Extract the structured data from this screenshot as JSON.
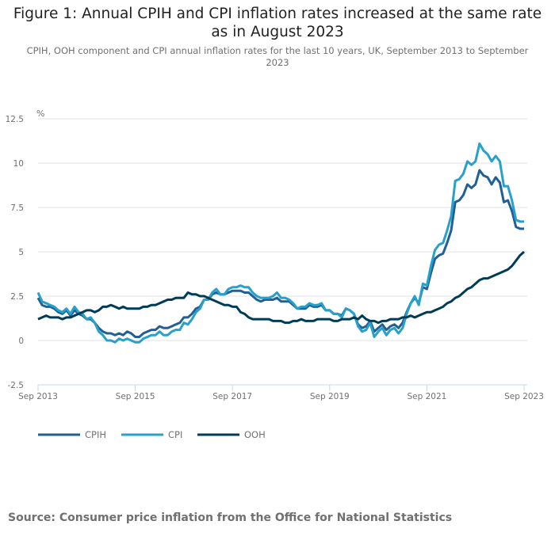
{
  "title": "Figure 1: Annual CPIH and CPI inflation rates increased at the same rate as in August 2023",
  "subtitle": "CPIH, OOH component and CPI annual inflation rates for the last 10 years, UK, September 2013 to September 2023",
  "source": "Source: Consumer price inflation from the Office for National Statistics",
  "chart_data": {
    "type": "line",
    "ylabel": "%",
    "ylim": [
      -2.5,
      12.5
    ],
    "yticks": [
      "12.5",
      "10",
      "7.5",
      "5",
      "2.5",
      "0",
      "-2.5"
    ],
    "xticks": [
      "Sep 2013",
      "Sep 2015",
      "Sep 2017",
      "Sep 2019",
      "Sep 2021",
      "Sep 2023"
    ],
    "x_start": "Sep 2013",
    "x_end": "Sep 2023",
    "frequency": "monthly",
    "grid": true,
    "legend_position": "bottom",
    "series": [
      {
        "name": "CPIH",
        "color": "#206095",
        "values": [
          2.4,
          2.0,
          1.9,
          1.9,
          1.8,
          1.6,
          1.5,
          1.7,
          1.4,
          1.7,
          1.5,
          1.4,
          1.2,
          1.2,
          1.0,
          0.7,
          0.5,
          0.4,
          0.4,
          0.3,
          0.4,
          0.3,
          0.5,
          0.4,
          0.2,
          0.2,
          0.4,
          0.5,
          0.6,
          0.6,
          0.8,
          0.7,
          0.7,
          0.8,
          0.9,
          1.0,
          1.3,
          1.3,
          1.5,
          1.8,
          1.9,
          2.3,
          2.3,
          2.6,
          2.7,
          2.6,
          2.6,
          2.7,
          2.8,
          2.8,
          2.8,
          2.7,
          2.7,
          2.5,
          2.3,
          2.2,
          2.3,
          2.3,
          2.3,
          2.4,
          2.2,
          2.2,
          2.2,
          2.0,
          1.8,
          1.8,
          1.8,
          2.0,
          1.9,
          1.9,
          2.0,
          1.7,
          1.7,
          1.5,
          1.5,
          1.4,
          1.8,
          1.7,
          1.5,
          0.9,
          0.7,
          0.8,
          1.1,
          0.5,
          0.7,
          0.9,
          0.6,
          0.8,
          0.9,
          0.7,
          1.0,
          1.6,
          2.1,
          2.4,
          2.1,
          3.0,
          2.9,
          3.8,
          4.6,
          4.8,
          4.9,
          5.5,
          6.2,
          7.8,
          7.9,
          8.2,
          8.8,
          8.6,
          8.8,
          9.6,
          9.3,
          9.2,
          8.8,
          9.2,
          8.9,
          7.8,
          7.9,
          7.3,
          6.4,
          6.3,
          6.3
        ]
      },
      {
        "name": "CPI",
        "color": "#27a0cc",
        "values": [
          2.7,
          2.2,
          2.1,
          2.0,
          1.9,
          1.7,
          1.6,
          1.8,
          1.5,
          1.9,
          1.6,
          1.5,
          1.2,
          1.3,
          1.0,
          0.5,
          0.3,
          0.0,
          0.0,
          -0.1,
          0.1,
          0.0,
          0.1,
          0.0,
          -0.1,
          -0.1,
          0.1,
          0.2,
          0.3,
          0.3,
          0.5,
          0.3,
          0.3,
          0.5,
          0.6,
          0.6,
          1.0,
          0.9,
          1.2,
          1.6,
          1.8,
          2.3,
          2.3,
          2.7,
          2.9,
          2.6,
          2.6,
          2.9,
          3.0,
          3.0,
          3.1,
          3.0,
          3.0,
          2.7,
          2.5,
          2.4,
          2.4,
          2.4,
          2.5,
          2.7,
          2.4,
          2.4,
          2.3,
          2.1,
          1.8,
          1.9,
          1.9,
          2.1,
          2.0,
          2.0,
          2.1,
          1.7,
          1.7,
          1.5,
          1.5,
          1.3,
          1.8,
          1.7,
          1.5,
          0.8,
          0.5,
          0.6,
          1.0,
          0.2,
          0.5,
          0.7,
          0.3,
          0.6,
          0.7,
          0.4,
          0.7,
          1.5,
          2.1,
          2.5,
          2.0,
          3.2,
          3.1,
          4.2,
          5.1,
          5.4,
          5.5,
          6.2,
          7.0,
          9.0,
          9.1,
          9.4,
          10.1,
          9.9,
          10.1,
          11.1,
          10.7,
          10.5,
          10.1,
          10.4,
          10.1,
          8.7,
          8.7,
          7.9,
          6.8,
          6.7,
          6.7
        ]
      },
      {
        "name": "OOH",
        "color": "#003c57",
        "values": [
          1.2,
          1.3,
          1.4,
          1.3,
          1.3,
          1.3,
          1.2,
          1.3,
          1.3,
          1.4,
          1.5,
          1.6,
          1.7,
          1.7,
          1.6,
          1.7,
          1.9,
          1.9,
          2.0,
          1.9,
          1.8,
          1.9,
          1.8,
          1.8,
          1.8,
          1.8,
          1.9,
          1.9,
          2.0,
          2.0,
          2.1,
          2.2,
          2.3,
          2.3,
          2.4,
          2.4,
          2.4,
          2.7,
          2.6,
          2.6,
          2.5,
          2.5,
          2.4,
          2.3,
          2.2,
          2.1,
          2.0,
          2.0,
          1.9,
          1.9,
          1.6,
          1.5,
          1.3,
          1.2,
          1.2,
          1.2,
          1.2,
          1.2,
          1.1,
          1.1,
          1.1,
          1.0,
          1.0,
          1.1,
          1.1,
          1.2,
          1.1,
          1.1,
          1.1,
          1.2,
          1.2,
          1.2,
          1.2,
          1.1,
          1.1,
          1.2,
          1.2,
          1.2,
          1.3,
          1.2,
          1.4,
          1.2,
          1.1,
          1.1,
          1.0,
          1.1,
          1.1,
          1.2,
          1.2,
          1.2,
          1.3,
          1.3,
          1.4,
          1.3,
          1.4,
          1.5,
          1.6,
          1.6,
          1.7,
          1.8,
          1.9,
          2.1,
          2.2,
          2.4,
          2.5,
          2.7,
          2.9,
          3.0,
          3.2,
          3.4,
          3.5,
          3.5,
          3.6,
          3.7,
          3.8,
          3.9,
          4.0,
          4.2,
          4.5,
          4.8,
          5.0
        ]
      }
    ]
  }
}
